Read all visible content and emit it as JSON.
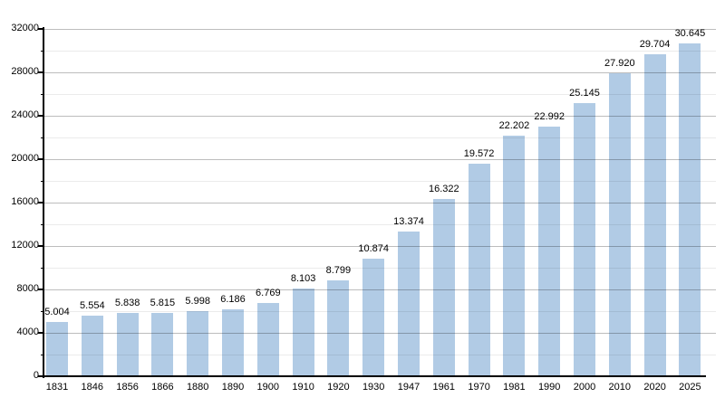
{
  "chart_data": {
    "type": "bar",
    "title": "",
    "xlabel": "",
    "ylabel": "",
    "categories": [
      "1831",
      "1846",
      "1856",
      "1866",
      "1880",
      "1890",
      "1900",
      "1910",
      "1920",
      "1930",
      "1947",
      "1961",
      "1970",
      "1981",
      "1990",
      "2000",
      "2010",
      "2020",
      "2025"
    ],
    "values": [
      5004,
      5554,
      5838,
      5815,
      5998,
      6186,
      6769,
      8103,
      8799,
      10874,
      13374,
      16322,
      19572,
      22202,
      22992,
      25145,
      27920,
      29704,
      30645
    ],
    "value_labels": [
      "5.004",
      "5.554",
      "5.838",
      "5.815",
      "5.998",
      "6.186",
      "6.769",
      "8.103",
      "8.799",
      "10.874",
      "13.374",
      "16.322",
      "19.572",
      "22.202",
      "22.992",
      "25.145",
      "27.920",
      "29.704",
      "30.645"
    ],
    "ylim": [
      0,
      32000
    ],
    "y_major_step": 4000,
    "y_minor_step": 2000,
    "y_tick_labels": [
      "0",
      "4000",
      "8000",
      "12000",
      "16000",
      "20000",
      "24000",
      "28000",
      "32000"
    ],
    "grid": "on",
    "legend": "none",
    "colors": {
      "bar_fill": "#b1cbe5",
      "axis": "#000000",
      "major_gridline": "rgba(0,0,0,0.26)",
      "minor_gridline": "rgba(0,0,0,0.08)",
      "label_text": "#000000",
      "background": "#ffffff"
    }
  }
}
